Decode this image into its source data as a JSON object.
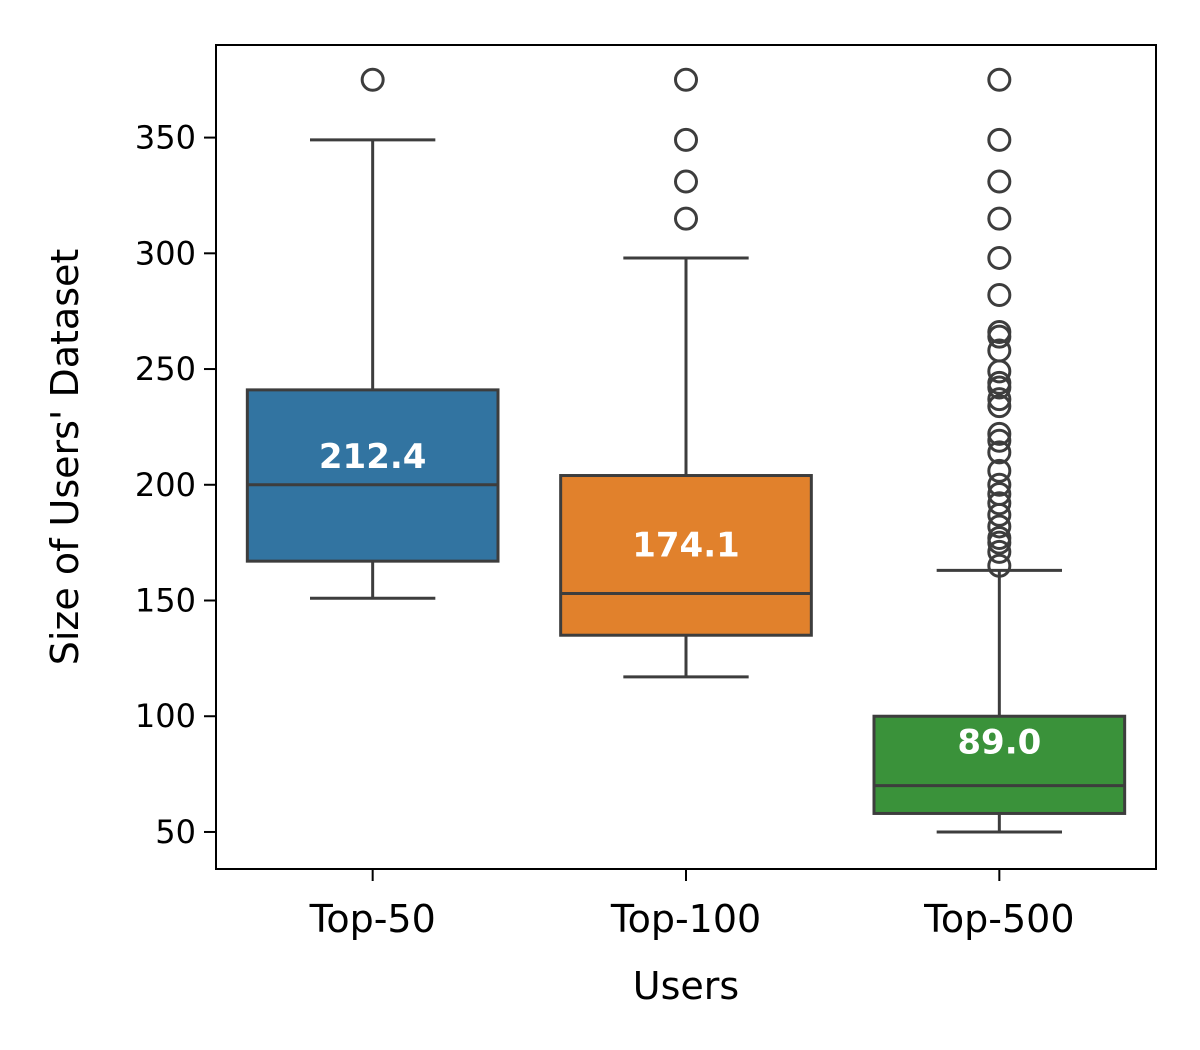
{
  "chart_data": {
    "type": "box",
    "title": "",
    "xlabel": "Users",
    "ylabel": "Size of Users' Dataset",
    "ylim": [
      34,
      390
    ],
    "yticks": [
      50,
      100,
      150,
      200,
      250,
      300,
      350
    ],
    "ytick_labels": [
      "50",
      "100",
      "150",
      "200",
      "250",
      "300",
      "350"
    ],
    "grid": false,
    "legend": "none",
    "categories": [
      "Top-50",
      "Top-100",
      "Top-500"
    ],
    "series": [
      {
        "name": "Top-50",
        "color": "#3274a1",
        "whisker_low": 151,
        "q1": 167,
        "median": 200,
        "q3": 241,
        "whisker_high": 349,
        "mean": 212.4,
        "mean_label": "212.4",
        "outliers": [
          375
        ]
      },
      {
        "name": "Top-100",
        "color": "#e1812c",
        "whisker_low": 117,
        "q1": 135,
        "median": 153,
        "q3": 204,
        "whisker_high": 298,
        "mean": 174.1,
        "mean_label": "174.1",
        "outliers": [
          315,
          331,
          349,
          375
        ]
      },
      {
        "name": "Top-500",
        "color": "#3a923a",
        "whisker_low": 50,
        "q1": 58,
        "median": 70,
        "q3": 100,
        "whisker_high": 163,
        "mean": 89.0,
        "mean_label": "89.0",
        "outliers": [
          165,
          171,
          175,
          177,
          182,
          187,
          192,
          196,
          200,
          206,
          214,
          219,
          222,
          234,
          237,
          242,
          244,
          249,
          258,
          264,
          266,
          282,
          298,
          315,
          331,
          349,
          375
        ]
      }
    ]
  }
}
